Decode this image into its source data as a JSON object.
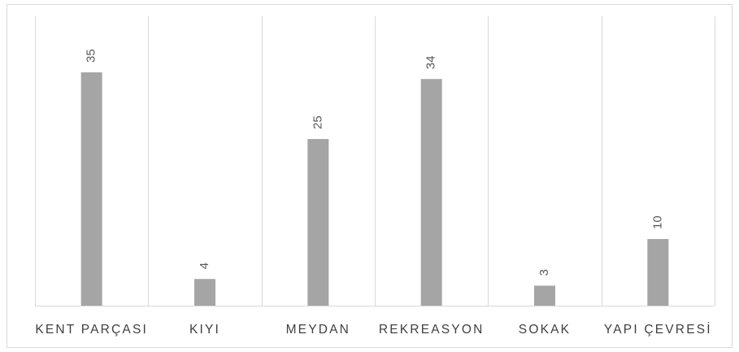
{
  "chart_data": {
    "type": "bar",
    "categories": [
      "KENT PARÇASI",
      "KIYI",
      "MEYDAN",
      "REKREASYON",
      "SOKAK",
      "YAPI ÇEVRESİ"
    ],
    "values": [
      35,
      4,
      25,
      34,
      3,
      10
    ],
    "title": "",
    "xlabel": "",
    "ylabel": "",
    "ylim": [
      0,
      40
    ],
    "grid": false,
    "legend": "none",
    "data_labels": true,
    "colors": {
      "bar": "#a5a5a5",
      "divider": "#d9d9d9",
      "label": "#595959",
      "tick": "#404040"
    }
  }
}
